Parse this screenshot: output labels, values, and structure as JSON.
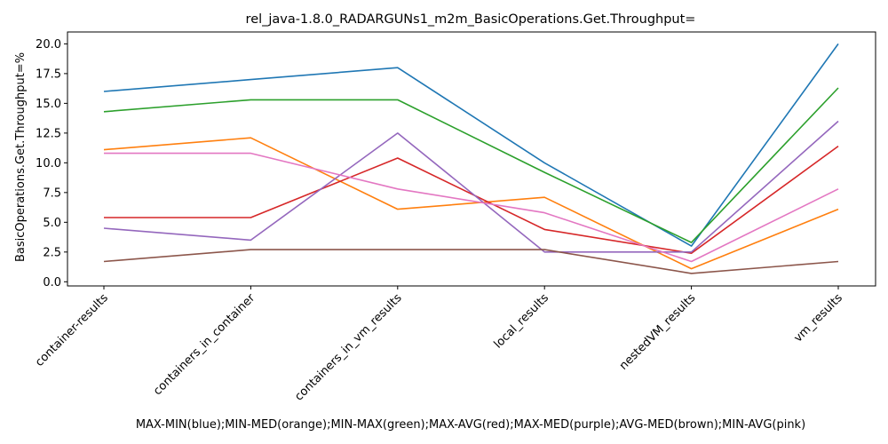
{
  "chart_data": {
    "type": "line",
    "title": "rel_java-1.8.0_RADARGUNs1_m2m_BasicOperations.Get.Throughput=",
    "xlabel": "MAX-MIN(blue);MIN-MED(orange);MIN-MAX(green);MAX-AVG(red);MAX-MED(purple);AVG-MED(brown);MIN-AVG(pink)",
    "ylabel": "BasicOperations.Get.Throughput=%",
    "categories": [
      "container-results",
      "containers_in_container",
      "containers_in_vm_results",
      "local_results",
      "nestedVM_results",
      "vm_results"
    ],
    "ylim": [
      -0.35,
      21.0
    ],
    "yticks": [
      "0.0",
      "2.5",
      "5.0",
      "7.5",
      "10.0",
      "12.5",
      "15.0",
      "17.5",
      "20.0"
    ],
    "grid": false,
    "series": [
      {
        "color": "#1f77b4",
        "values": [
          16.0,
          17.0,
          18.0,
          10.0,
          3.0,
          20.0
        ]
      },
      {
        "color": "#ff7f0e",
        "values": [
          11.1,
          12.1,
          6.1,
          7.1,
          1.1,
          6.1
        ]
      },
      {
        "color": "#2ca02c",
        "values": [
          14.3,
          15.3,
          15.3,
          9.2,
          3.3,
          16.3
        ]
      },
      {
        "color": "#d62728",
        "values": [
          5.4,
          5.4,
          10.4,
          4.4,
          2.4,
          11.4
        ]
      },
      {
        "color": "#9467bd",
        "values": [
          4.5,
          3.5,
          12.5,
          2.5,
          2.5,
          13.5
        ]
      },
      {
        "color": "#8c564b",
        "values": [
          1.7,
          2.7,
          2.7,
          2.7,
          0.7,
          1.7
        ]
      },
      {
        "color": "#e377c2",
        "values": [
          10.8,
          10.8,
          7.8,
          5.8,
          1.7,
          7.8
        ]
      }
    ]
  }
}
